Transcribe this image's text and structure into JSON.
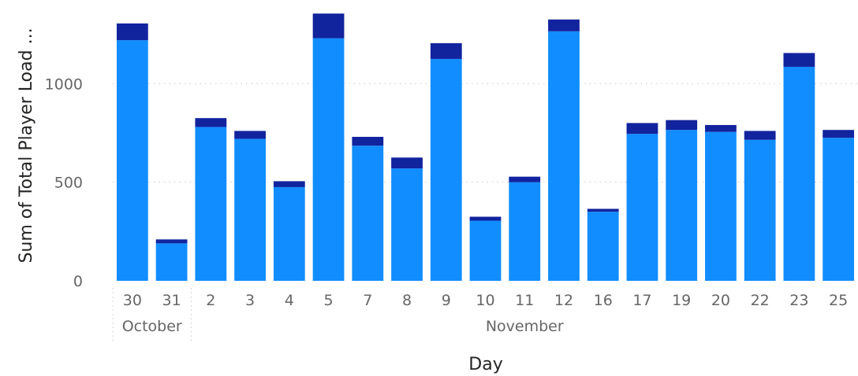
{
  "chart_data": {
    "type": "bar",
    "stacked": true,
    "title": "",
    "xlabel": "Day",
    "ylabel": "Sum of Total Player Load ...",
    "ylim": [
      0,
      1360
    ],
    "yticks": [
      0,
      500,
      1000
    ],
    "grid": true,
    "legend": "none",
    "categories": [
      "30",
      "31",
      "2",
      "3",
      "4",
      "5",
      "7",
      "8",
      "9",
      "10",
      "11",
      "12",
      "16",
      "17",
      "19",
      "20",
      "22",
      "23",
      "25"
    ],
    "groups": [
      {
        "label": "October",
        "count": 2
      },
      {
        "label": "November",
        "count": 17
      }
    ],
    "series": [
      {
        "color": "#118dff",
        "values": [
          1220,
          190,
          780,
          720,
          475,
          1230,
          685,
          570,
          1125,
          305,
          500,
          1265,
          350,
          745,
          765,
          755,
          715,
          1085,
          725
        ]
      },
      {
        "color": "#12239e",
        "values": [
          85,
          20,
          45,
          40,
          30,
          125,
          45,
          55,
          80,
          20,
          28,
          60,
          15,
          55,
          50,
          35,
          45,
          70,
          40
        ]
      }
    ]
  }
}
